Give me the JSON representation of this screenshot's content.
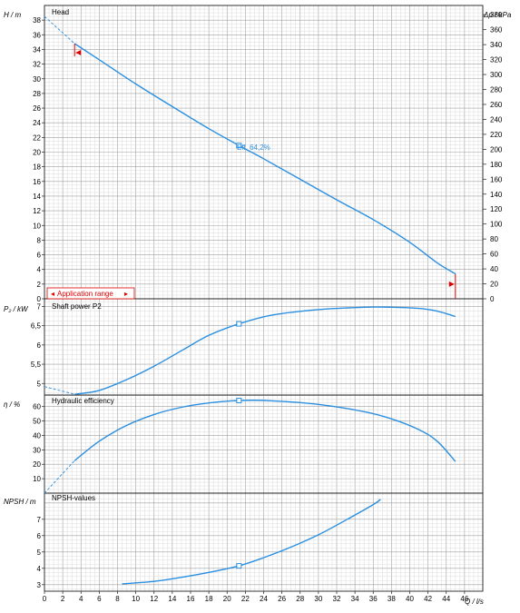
{
  "chart_data": [
    {
      "type": "line",
      "title": "Head",
      "ylabel": "H  /  m",
      "y2label": "Δp  / kPa",
      "ylim": [
        0,
        40
      ],
      "y_ticks": [
        0,
        2,
        4,
        6,
        8,
        10,
        12,
        14,
        16,
        18,
        20,
        22,
        24,
        26,
        28,
        30,
        32,
        34,
        36,
        38
      ],
      "y2lim": [
        0,
        392.4
      ],
      "y2_ticks": [
        0,
        20,
        40,
        60,
        80,
        100,
        120,
        140,
        160,
        180,
        200,
        220,
        240,
        260,
        280,
        300,
        320,
        340,
        360,
        380
      ],
      "grid": true,
      "series": [
        {
          "x": [
            3.3,
            6,
            10,
            14,
            18,
            21.3,
            24,
            28,
            32,
            36,
            40,
            43,
            45
          ],
          "y": [
            34.8,
            32.6,
            29.3,
            26.2,
            23.2,
            20.9,
            19.1,
            16.3,
            13.5,
            10.8,
            7.7,
            4.9,
            3.4
          ],
          "color": "#2a8fe0"
        }
      ],
      "extrapolation": {
        "x": [
          0,
          3.3
        ],
        "y": [
          38.5,
          34.8
        ]
      },
      "operating_point": {
        "x": 21.3,
        "y": 20.9,
        "label": "Eff.  64,2%"
      },
      "application_range": {
        "label": "Application range",
        "x": [
          3.3,
          45
        ]
      }
    },
    {
      "type": "line",
      "title": "Shaft power P2",
      "ylabel": "P₂  /  kW",
      "ylim": [
        4.7,
        7.2
      ],
      "y_ticks": [
        5,
        5.5,
        6,
        6.5,
        7
      ],
      "y_tick_labels": [
        "5",
        "5,5",
        "6",
        "6,5",
        "7"
      ],
      "grid": true,
      "series": [
        {
          "x": [
            3.3,
            6,
            9,
            12,
            15,
            18,
            21.3,
            25,
            30,
            35,
            38,
            41,
            43,
            45
          ],
          "y": [
            4.72,
            4.82,
            5.1,
            5.45,
            5.85,
            6.25,
            6.55,
            6.78,
            6.92,
            6.98,
            6.98,
            6.95,
            6.88,
            6.74
          ],
          "color": "#2a8fe0"
        }
      ],
      "extrapolation": {
        "x": [
          0,
          3.3
        ],
        "y": [
          4.92,
          4.72
        ]
      },
      "operating_point": {
        "x": 21.3,
        "y": 6.55
      }
    },
    {
      "type": "line",
      "title": "Hydraulic efficiency",
      "ylabel": "η  /  %",
      "ylim": [
        0,
        68
      ],
      "y_ticks": [
        10,
        20,
        30,
        40,
        50,
        60
      ],
      "grid": true,
      "series": [
        {
          "x": [
            3.3,
            6,
            9,
            12,
            15,
            18,
            21.3,
            25,
            30,
            35,
            38,
            41,
            43,
            45
          ],
          "y": [
            22.5,
            36,
            47,
            54.5,
            59.5,
            62.5,
            64.2,
            64,
            61.5,
            56.5,
            51.5,
            44,
            36,
            22
          ],
          "color": "#2a8fe0"
        }
      ],
      "extrapolation": {
        "x": [
          0,
          3.3
        ],
        "y": [
          0,
          22.5
        ]
      },
      "operating_point": {
        "x": 21.3,
        "y": 64.2
      }
    },
    {
      "type": "line",
      "title": "NPSH-values",
      "ylabel": "NPSH  /  m",
      "xlabel": "Q  /  l/s",
      "ylim": [
        2.6,
        8.6
      ],
      "y_ticks": [
        3,
        4,
        5,
        6,
        7
      ],
      "xlim": [
        0,
        48
      ],
      "x_ticks": [
        0,
        2,
        4,
        6,
        8,
        10,
        12,
        14,
        16,
        18,
        20,
        22,
        24,
        26,
        28,
        30,
        32,
        34,
        36,
        38,
        40,
        42,
        44,
        46
      ],
      "grid": true,
      "series": [
        {
          "x": [
            8.5,
            12,
            15,
            18,
            21.3,
            24,
            27,
            30,
            33,
            36,
            36.8
          ],
          "y": [
            3.05,
            3.2,
            3.45,
            3.75,
            4.15,
            4.65,
            5.3,
            6.05,
            6.95,
            7.9,
            8.22
          ],
          "color": "#2a8fe0"
        }
      ],
      "operating_point": {
        "x": 21.3,
        "y": 4.15
      }
    }
  ],
  "colors": {
    "curve": "#2a8fe0",
    "range": "#e00000",
    "grid_minor": "#d2d2d2",
    "grid_major": "#a0a0a0"
  }
}
